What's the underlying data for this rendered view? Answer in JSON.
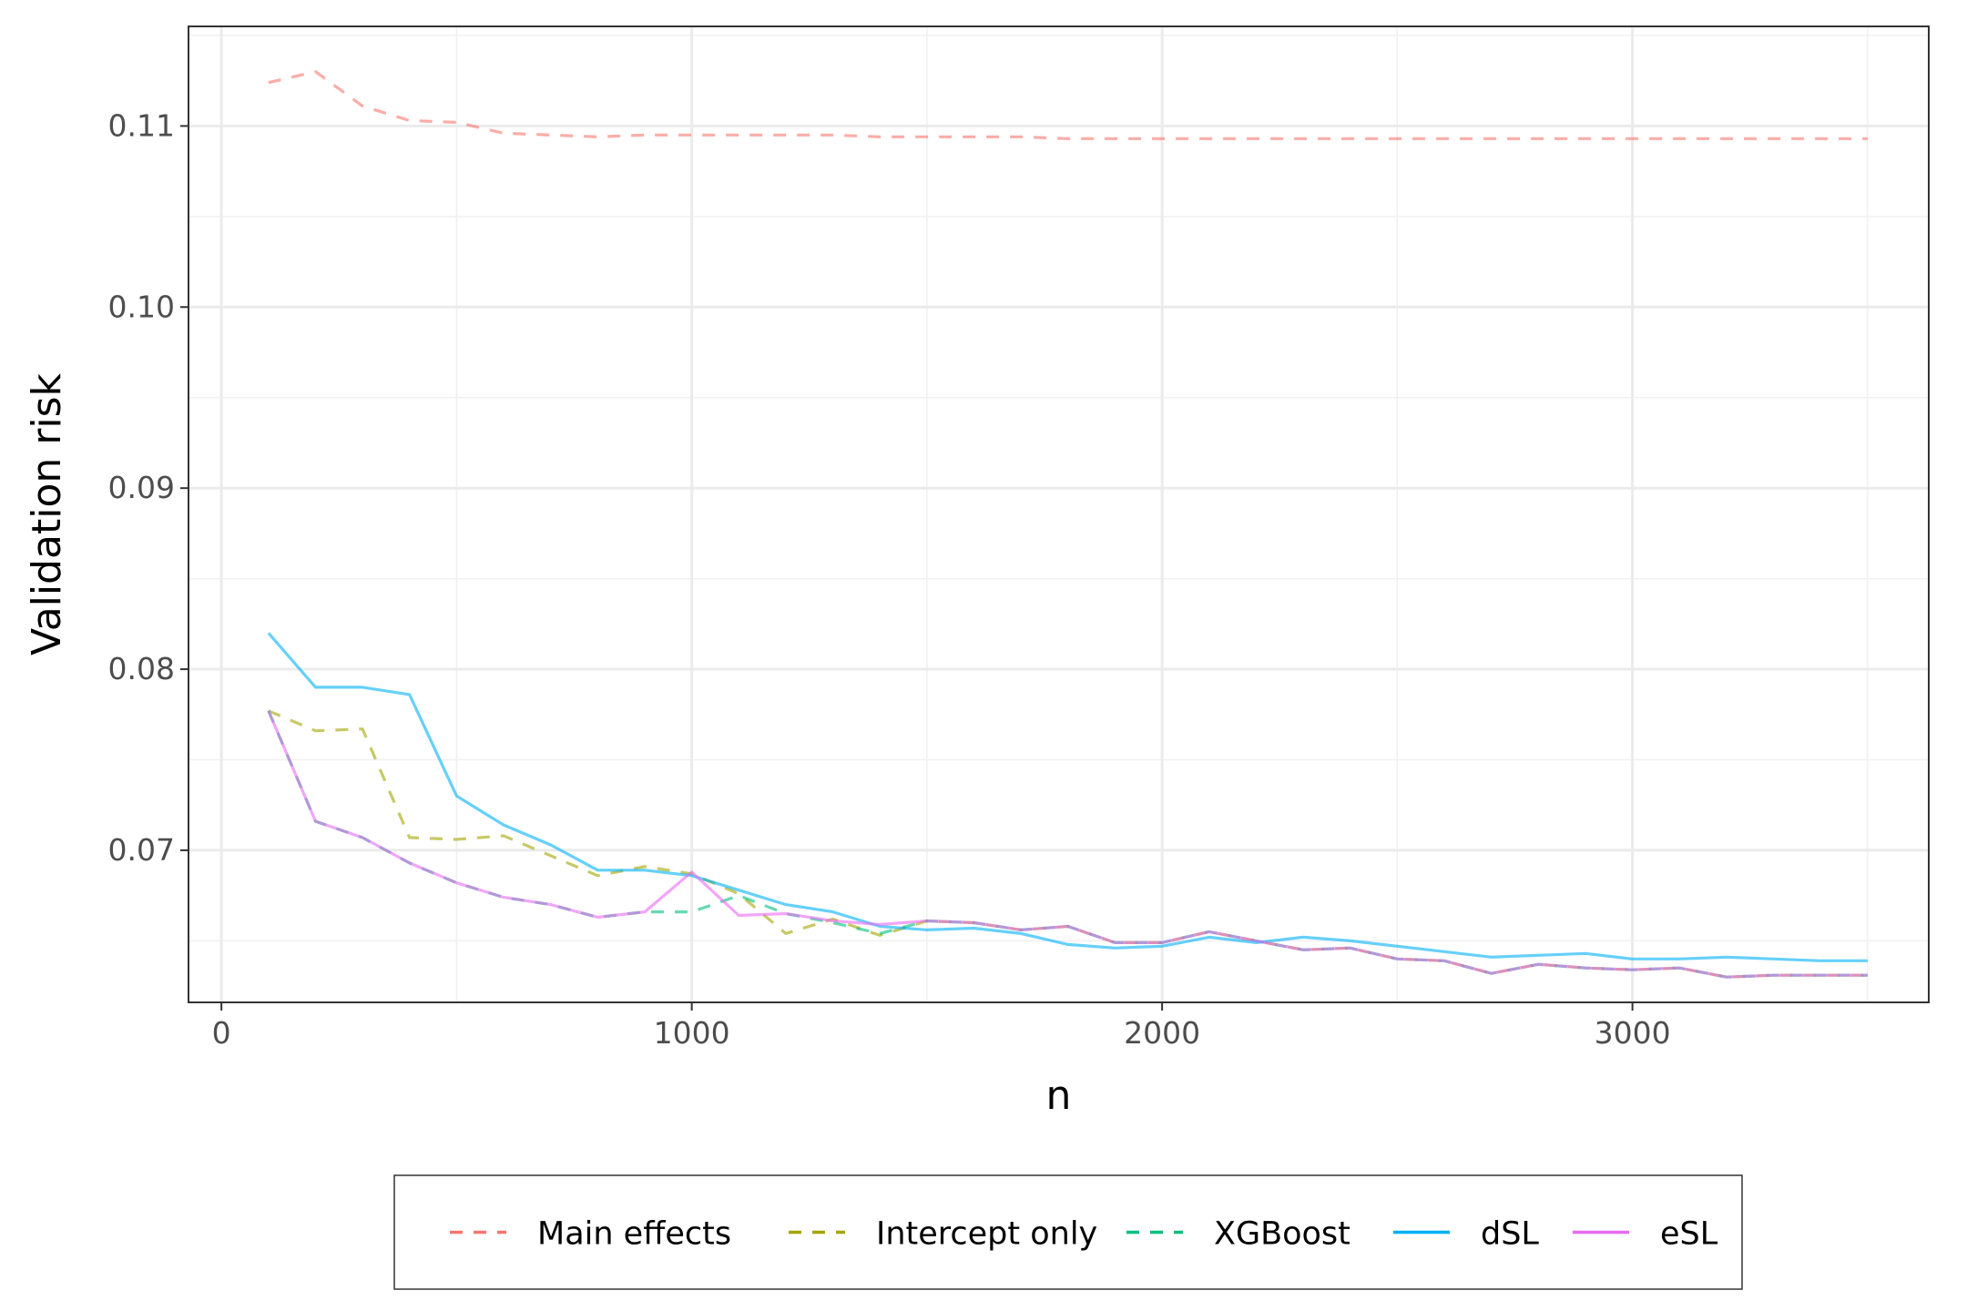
{
  "chart_data": {
    "type": "line",
    "title": "",
    "xlabel": "n",
    "ylabel": "Validation risk",
    "xlim": [
      -70,
      3630
    ],
    "ylim": [
      0.0616,
      0.1155
    ],
    "x_ticks": [
      0,
      1000,
      2000,
      3000
    ],
    "x_tick_labels": [
      "0",
      "1000",
      "2000",
      "3000"
    ],
    "y_ticks": [
      0.07,
      0.08,
      0.09,
      0.1,
      0.11
    ],
    "y_tick_labels": [
      "0.07",
      "0.08",
      "0.09",
      "0.10",
      "0.11"
    ],
    "grid": true,
    "legend_position": "bottom",
    "x": [
      100,
      200,
      300,
      400,
      500,
      600,
      700,
      800,
      900,
      1000,
      1100,
      1200,
      1300,
      1400,
      1500,
      1600,
      1700,
      1800,
      1900,
      2000,
      2100,
      2200,
      2300,
      2400,
      2500,
      2600,
      2700,
      2800,
      2900,
      3000,
      3100,
      3200,
      3300,
      3400,
      3500
    ],
    "series": [
      {
        "name": "Main effects",
        "color": "#F8766D",
        "dash": "dashed",
        "values": [
          0.1124,
          0.113,
          0.1111,
          0.1103,
          0.1102,
          0.1096,
          0.1095,
          0.1094,
          0.1095,
          0.1095,
          0.1095,
          0.1095,
          0.1095,
          0.1094,
          0.1094,
          0.1094,
          0.1094,
          0.1093,
          0.1093,
          0.1093,
          0.1093,
          0.1093,
          0.1093,
          0.1093,
          0.1093,
          0.1093,
          0.1093,
          0.1093,
          0.1093,
          0.1093,
          0.1093,
          0.1093,
          0.1093,
          0.1093,
          0.1093
        ]
      },
      {
        "name": "Intercept only",
        "color": "#A3A500",
        "dash": "dashed",
        "values": [
          0.0777,
          0.0766,
          0.0767,
          0.0707,
          0.0706,
          0.0708,
          0.0697,
          0.0686,
          0.0691,
          0.0687,
          0.0676,
          0.0654,
          0.0662,
          0.0653,
          0.0661,
          0.066,
          0.0656,
          0.0658,
          0.0649,
          0.0649,
          0.0655,
          0.065,
          0.0645,
          0.0646,
          0.064,
          0.0639,
          0.0632,
          0.0637,
          0.0635,
          0.0634,
          0.0635,
          0.063,
          0.0631,
          0.0631,
          0.0631
        ]
      },
      {
        "name": "XGBoost",
        "color": "#00BF7D",
        "dash": "dashed",
        "values": [
          0.0777,
          0.0716,
          0.0707,
          0.0693,
          0.0682,
          0.0674,
          0.067,
          0.0663,
          0.0666,
          0.0666,
          0.0675,
          0.0665,
          0.066,
          0.0654,
          0.0661,
          0.066,
          0.0656,
          0.0658,
          0.0649,
          0.0649,
          0.0655,
          0.065,
          0.0645,
          0.0646,
          0.064,
          0.0639,
          0.0632,
          0.0637,
          0.0635,
          0.0634,
          0.0635,
          0.063,
          0.0631,
          0.0631,
          0.0631
        ]
      },
      {
        "name": "dSL",
        "color": "#00B0F6",
        "dash": "solid",
        "values": [
          0.082,
          0.079,
          0.079,
          0.0786,
          0.073,
          0.0714,
          0.0703,
          0.0689,
          0.0689,
          0.0686,
          0.0678,
          0.067,
          0.0666,
          0.0658,
          0.0656,
          0.0657,
          0.0654,
          0.0648,
          0.0646,
          0.0647,
          0.0652,
          0.0649,
          0.0652,
          0.065,
          0.0647,
          0.0644,
          0.0641,
          0.0642,
          0.0643,
          0.064,
          0.064,
          0.0641,
          0.064,
          0.0639,
          0.0639
        ]
      },
      {
        "name": "eSL",
        "color": "#E76BF3",
        "dash": "solid",
        "values": [
          0.0777,
          0.0716,
          0.0707,
          0.0693,
          0.0682,
          0.0674,
          0.067,
          0.0663,
          0.0666,
          0.0688,
          0.0664,
          0.0665,
          0.0661,
          0.0659,
          0.0661,
          0.066,
          0.0656,
          0.0658,
          0.0649,
          0.0649,
          0.0655,
          0.065,
          0.0645,
          0.0646,
          0.064,
          0.0639,
          0.0632,
          0.0637,
          0.0635,
          0.0634,
          0.0635,
          0.063,
          0.0631,
          0.0631,
          0.0631
        ]
      }
    ]
  }
}
